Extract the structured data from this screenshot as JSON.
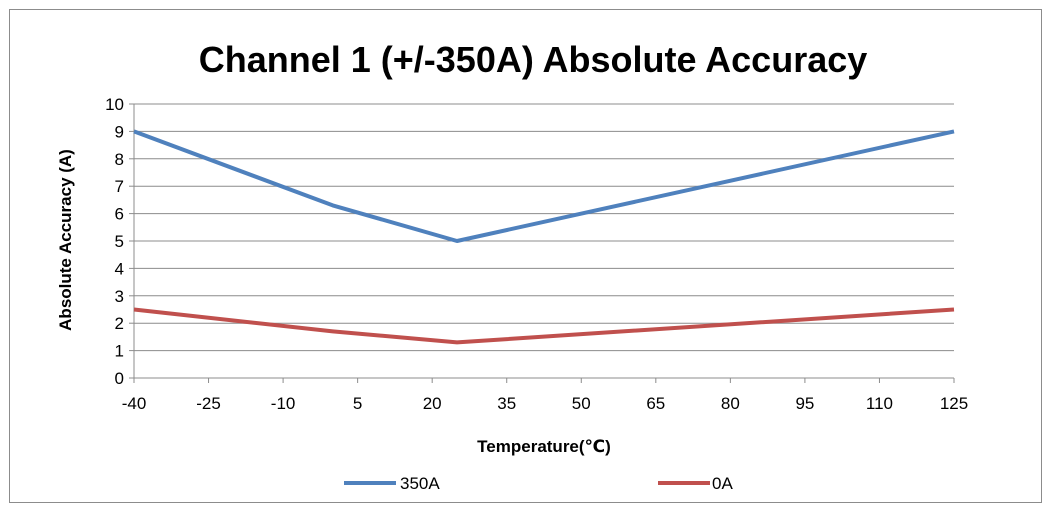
{
  "chart_data": {
    "type": "line",
    "title": "Channel 1 (+/-350A) Absolute Accuracy",
    "xlabel": "Temperature(℃)",
    "ylabel": "Absolute Accuracy (A)",
    "xlim": [
      -40,
      125
    ],
    "ylim": [
      0,
      10
    ],
    "x_ticks": [
      "-40",
      "-25",
      "-10",
      "5",
      "20",
      "35",
      "50",
      "65",
      "80",
      "95",
      "110",
      "125"
    ],
    "y_ticks": [
      "0",
      "1",
      "2",
      "3",
      "4",
      "5",
      "6",
      "7",
      "8",
      "9",
      "10"
    ],
    "grid": true,
    "legend_position": "bottom",
    "series": [
      {
        "name": "350A",
        "color": "#4f81bd",
        "points": [
          {
            "x": -40,
            "y": 9
          },
          {
            "x": 0,
            "y": 6.3
          },
          {
            "x": 25,
            "y": 5
          },
          {
            "x": 125,
            "y": 9
          }
        ]
      },
      {
        "name": "0A",
        "color": "#c0504d",
        "points": [
          {
            "x": -40,
            "y": 2.5
          },
          {
            "x": 0,
            "y": 1.7
          },
          {
            "x": 25,
            "y": 1.3
          },
          {
            "x": 125,
            "y": 2.5
          }
        ]
      }
    ]
  }
}
